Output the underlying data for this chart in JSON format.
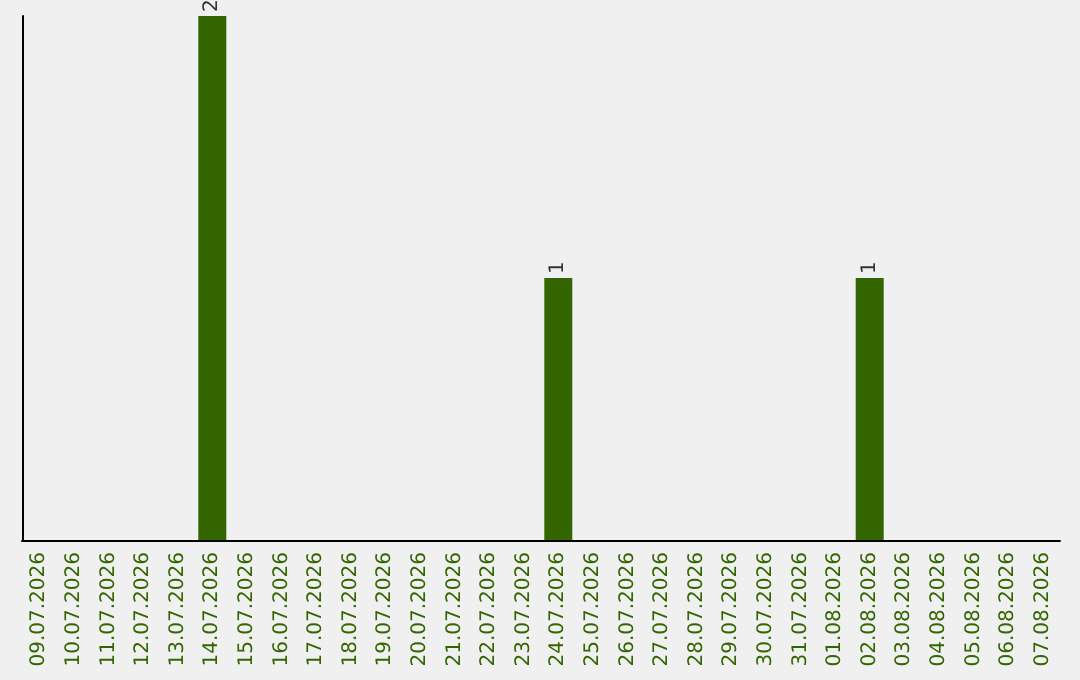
{
  "chart_data": {
    "type": "bar",
    "categories": [
      "09.07.2026",
      "10.07.2026",
      "11.07.2026",
      "12.07.2026",
      "13.07.2026",
      "14.07.2026",
      "15.07.2026",
      "16.07.2026",
      "17.07.2026",
      "18.07.2026",
      "19.07.2026",
      "20.07.2026",
      "21.07.2026",
      "22.07.2026",
      "23.07.2026",
      "24.07.2026",
      "25.07.2026",
      "26.07.2026",
      "27.07.2026",
      "28.07.2026",
      "29.07.2026",
      "30.07.2026",
      "31.07.2026",
      "01.08.2026",
      "02.08.2026",
      "03.08.2026",
      "04.08.2026",
      "05.08.2026",
      "06.08.2026",
      "07.08.2026"
    ],
    "values": [
      0,
      0,
      0,
      0,
      0,
      2,
      0,
      0,
      0,
      0,
      0,
      0,
      0,
      0,
      0,
      1,
      0,
      0,
      0,
      0,
      0,
      0,
      0,
      0,
      1,
      0,
      0,
      0,
      0,
      0
    ],
    "value_labels": [
      null,
      null,
      null,
      null,
      null,
      "2",
      null,
      null,
      null,
      null,
      null,
      null,
      null,
      null,
      null,
      "1",
      null,
      null,
      null,
      null,
      null,
      null,
      null,
      null,
      "1",
      null,
      null,
      null,
      null,
      null
    ],
    "color": "#336600",
    "grid": false,
    "tick_labels": "x"
  }
}
